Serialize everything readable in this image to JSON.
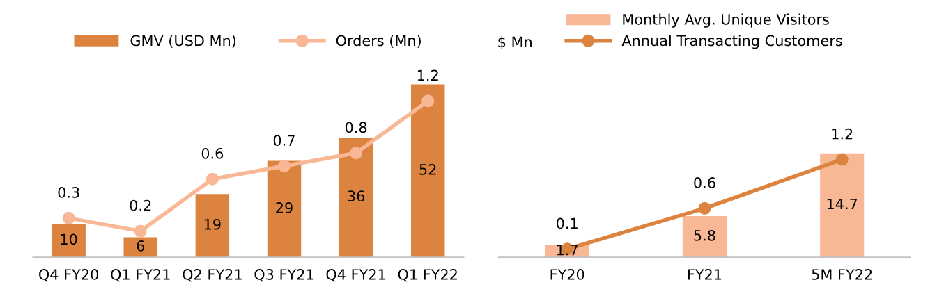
{
  "chart_data": [
    {
      "type": "bar",
      "categories": [
        "Q4 FY20",
        "Q1 FY21",
        "Q2 FY21",
        "Q3 FY21",
        "Q4 FY21",
        "Q1 FY22"
      ],
      "legend": "top",
      "marker": "circle",
      "data_labels": true,
      "tick_labels": "x",
      "grid": false,
      "series": [
        {
          "name": "GMV (USD Mn)",
          "color": "#dc843f",
          "values": [
            10,
            6,
            19,
            29,
            36,
            52
          ]
        },
        {
          "name": "Orders (Mn)",
          "type": "line",
          "axis": "y2",
          "color": "#f8b896",
          "values": [
            0.3,
            0.2,
            0.6,
            0.7,
            0.8,
            1.2
          ]
        }
      ]
    },
    {
      "type": "bar",
      "categories": [
        "FY20",
        "FY21",
        "5M FY22"
      ],
      "ylabel": "$ Mn",
      "legend": "top",
      "marker": "circle",
      "data_labels": true,
      "tick_labels": "x",
      "grid": false,
      "series": [
        {
          "name": "Monthly Avg. Unique Visitors",
          "color": "#f8b896",
          "values": [
            1.7,
            5.8,
            14.7
          ]
        },
        {
          "name": "Annual Transacting Customers",
          "type": "line",
          "axis": "y2",
          "color": "#dc843f",
          "values": [
            0.1,
            0.6,
            1.2
          ]
        }
      ]
    }
  ]
}
